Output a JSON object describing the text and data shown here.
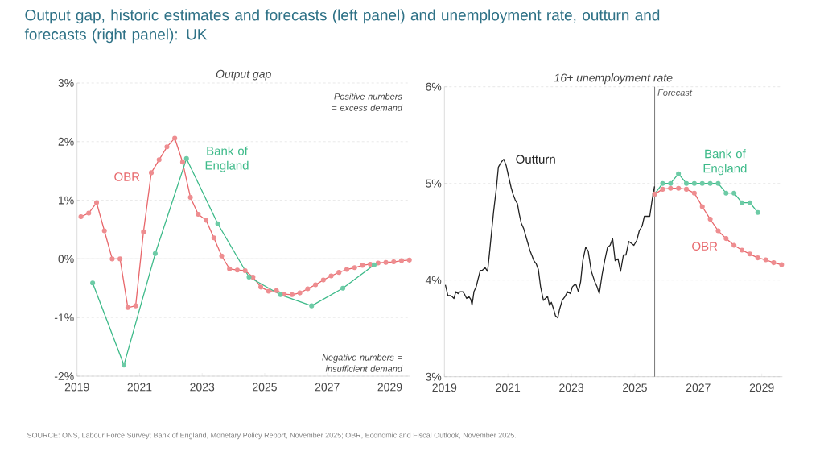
{
  "chart_data": [
    {
      "type": "line",
      "title": "Output gap, historic estimates and forecasts (left panel) and unemployment rate, outturn and forecasts (right panel): UK",
      "subtitle": "Output gap",
      "annotations": [
        "Positive numbers = excess demand",
        "Negative numbers = insufficient demand",
        "SOURCE: ONS, Labour Force Survey; Bank of England, Monetary Policy Report, November 2025; OBR, Economic and Fiscal Outlook, November 2025."
      ],
      "xlim": [
        2019,
        2029.65
      ],
      "xticks": [
        2019,
        2021,
        2023,
        2025,
        2027,
        2029
      ],
      "ylim": [
        -2,
        3
      ],
      "yticks": [
        {
          "value": -2,
          "label": "-2%"
        },
        {
          "value": -1,
          "label": "-1%"
        },
        {
          "value": 0,
          "label": "0%"
        },
        {
          "value": 1,
          "label": "1%"
        },
        {
          "value": 2,
          "label": "2%"
        },
        {
          "value": 3,
          "label": "3%"
        }
      ],
      "grid": "y",
      "ref_lines": [
        {
          "axis": "y",
          "value": 0,
          "color": "#b0b0b0"
        }
      ],
      "series": [
        {
          "name": "OBR",
          "color": "#e8676b",
          "marker": "circle",
          "x": [
            2019.125,
            2019.375,
            2019.625,
            2019.875,
            2020.125,
            2020.375,
            2020.625,
            2020.875,
            2021.125,
            2021.375,
            2021.625,
            2021.875,
            2022.125,
            2022.375,
            2022.625,
            2022.875,
            2023.125,
            2023.375,
            2023.625,
            2023.875,
            2024.125,
            2024.375,
            2024.625,
            2024.875,
            2025.125,
            2025.375,
            2025.625,
            2025.875,
            2026.125,
            2026.375,
            2026.625,
            2026.875,
            2027.125,
            2027.375,
            2027.625,
            2027.875,
            2028.125,
            2028.375,
            2028.625,
            2028.875,
            2029.125,
            2029.375,
            2029.625
          ],
          "values": [
            0.72,
            0.78,
            0.96,
            0.48,
            0.0,
            0.0,
            -0.83,
            -0.8,
            0.46,
            1.47,
            1.69,
            1.91,
            2.06,
            1.65,
            1.05,
            0.76,
            0.66,
            0.36,
            0.05,
            -0.17,
            -0.19,
            -0.2,
            -0.31,
            -0.48,
            -0.55,
            -0.54,
            -0.6,
            -0.61,
            -0.58,
            -0.51,
            -0.44,
            -0.36,
            -0.29,
            -0.23,
            -0.18,
            -0.15,
            -0.11,
            -0.09,
            -0.07,
            -0.06,
            -0.05,
            -0.03,
            -0.02
          ]
        },
        {
          "name": "Bank of England",
          "color": "#3dba89",
          "marker": "circle",
          "x": [
            2019.5,
            2020.5,
            2021.5,
            2022.5,
            2023.5,
            2024.5,
            2025.5,
            2026.5,
            2027.5,
            2028.5
          ],
          "values": [
            -0.41,
            -1.81,
            0.09,
            1.71,
            0.6,
            -0.31,
            -0.61,
            -0.8,
            -0.5,
            -0.1
          ]
        }
      ]
    },
    {
      "type": "line",
      "title": "16+ unemployment rate",
      "xlim": [
        2019,
        2029.65
      ],
      "xticks": [
        2019,
        2021,
        2023,
        2025,
        2027,
        2029
      ],
      "ylim": [
        3,
        6
      ],
      "yticks": [
        {
          "value": 3,
          "label": "3%"
        },
        {
          "value": 4,
          "label": "4%"
        },
        {
          "value": 5,
          "label": "5%"
        },
        {
          "value": 6,
          "label": "6%"
        }
      ],
      "grid": "y",
      "ref_lines": [
        {
          "axis": "x",
          "value": 2025.625,
          "label": "Forecast",
          "color": "#555555"
        }
      ],
      "series": [
        {
          "name": "Outturn",
          "color": "#222222",
          "marker": "none",
          "x": [
            2019.03,
            2019.11,
            2019.18,
            2019.24,
            2019.3,
            2019.36,
            2019.43,
            2019.5,
            2019.58,
            2019.64,
            2019.7,
            2019.77,
            2019.83,
            2019.87,
            2019.93,
            2020.0,
            2020.06,
            2020.13,
            2020.19,
            2020.28,
            2020.36,
            2020.42,
            2020.48,
            2020.55,
            2020.64,
            2020.7,
            2020.79,
            2020.87,
            2020.95,
            2021.03,
            2021.1,
            2021.16,
            2021.23,
            2021.3,
            2021.36,
            2021.42,
            2021.5,
            2021.57,
            2021.64,
            2021.69,
            2021.75,
            2021.82,
            2021.89,
            2021.96,
            2022.03,
            2022.12,
            2022.18,
            2022.25,
            2022.31,
            2022.37,
            2022.44,
            2022.5,
            2022.57,
            2022.63,
            2022.71,
            2022.8,
            2022.88,
            2022.97,
            2023.03,
            2023.09,
            2023.15,
            2023.22,
            2023.29,
            2023.36,
            2023.45,
            2023.53,
            2023.63,
            2023.73,
            2023.81,
            2023.88,
            2023.97,
            2024.05,
            2024.14,
            2024.22,
            2024.3,
            2024.38,
            2024.47,
            2024.55,
            2024.64,
            2024.72,
            2024.81,
            2024.89,
            2024.97,
            2025.06,
            2025.14,
            2025.23,
            2025.3,
            2025.38,
            2025.47,
            2025.55,
            2025.62
          ],
          "values": [
            3.95,
            3.84,
            3.84,
            3.83,
            3.81,
            3.88,
            3.86,
            3.88,
            3.88,
            3.85,
            3.81,
            3.83,
            3.8,
            3.74,
            3.88,
            3.93,
            4.01,
            4.1,
            4.1,
            4.13,
            4.09,
            4.28,
            4.48,
            4.71,
            4.96,
            5.17,
            5.22,
            5.25,
            5.18,
            5.06,
            4.96,
            4.89,
            4.83,
            4.79,
            4.68,
            4.59,
            4.53,
            4.45,
            4.37,
            4.31,
            4.26,
            4.2,
            4.17,
            4.11,
            3.93,
            3.79,
            3.81,
            3.83,
            3.74,
            3.77,
            3.7,
            3.63,
            3.61,
            3.7,
            3.79,
            3.83,
            3.88,
            3.86,
            3.93,
            3.95,
            3.95,
            3.88,
            3.98,
            4.2,
            4.34,
            4.3,
            4.09,
            3.99,
            3.93,
            3.86,
            4.06,
            4.2,
            4.34,
            4.36,
            4.43,
            4.2,
            4.22,
            4.09,
            4.26,
            4.26,
            4.4,
            4.38,
            4.36,
            4.41,
            4.51,
            4.56,
            4.66,
            4.66,
            4.66,
            4.84,
            4.97
          ]
        },
        {
          "name": "Bank of England",
          "color": "#3dba89",
          "marker": "circle",
          "x": [
            2025.625,
            2025.875,
            2026.125,
            2026.375,
            2026.625,
            2026.875,
            2027.125,
            2027.375,
            2027.625,
            2027.875,
            2028.125,
            2028.375,
            2028.625,
            2028.875
          ],
          "values": [
            4.89,
            5.0,
            5.0,
            5.1,
            5.0,
            5.0,
            5.0,
            5.0,
            5.0,
            4.9,
            4.9,
            4.8,
            4.8,
            4.7
          ]
        },
        {
          "name": "OBR",
          "color": "#e8676b",
          "marker": "circle",
          "x": [
            2025.625,
            2025.875,
            2026.125,
            2026.375,
            2026.625,
            2026.875,
            2027.125,
            2027.375,
            2027.625,
            2027.875,
            2028.125,
            2028.375,
            2028.625,
            2028.875,
            2029.125,
            2029.375,
            2029.625
          ],
          "values": [
            4.89,
            4.94,
            4.95,
            4.95,
            4.94,
            4.9,
            4.76,
            4.63,
            4.51,
            4.43,
            4.36,
            4.31,
            4.27,
            4.23,
            4.21,
            4.18,
            4.16
          ]
        }
      ]
    }
  ]
}
